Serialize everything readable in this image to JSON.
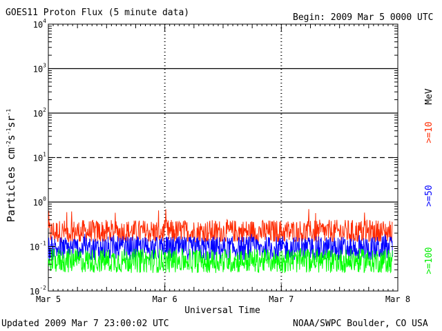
{
  "header": {
    "title": "GOES11 Proton Flux (5 minute data)",
    "begin": "Begin: 2009 Mar 5 0000 UTC"
  },
  "footer": {
    "updated": "Updated 2009 Mar  7 23:00:02 UTC",
    "source": "NOAA/SWPC Boulder, CO USA"
  },
  "chart_data": {
    "type": "line",
    "title": "GOES11 Proton Flux (5 minute data)",
    "xlabel": "Universal Time",
    "ylabel": {
      "base": "Particles cm",
      "e1": "-2",
      "s": "s",
      "e2": "-1",
      "sr": "sr",
      "e3": "-1"
    },
    "y_scale": "log",
    "ylim": [
      0.01,
      10000
    ],
    "y_ticks": [
      {
        "base": "10",
        "exp": "-2",
        "value": 0.01
      },
      {
        "base": "10",
        "exp": "-1",
        "value": 0.1
      },
      {
        "base": "10",
        "exp": "0",
        "value": 1
      },
      {
        "base": "10",
        "exp": "1",
        "value": 10
      },
      {
        "base": "10",
        "exp": "2",
        "value": 100
      },
      {
        "base": "10",
        "exp": "3",
        "value": 1000
      },
      {
        "base": "10",
        "exp": "4",
        "value": 10000
      }
    ],
    "x_ticks": [
      "Mar 5",
      "Mar 6",
      "Mar 7",
      "Mar 8"
    ],
    "xlim_days": [
      0,
      3
    ],
    "unit_label": "MeV",
    "series": [
      {
        "name": ">=10",
        "color": "#ff2a00",
        "baseline": 0.2,
        "min": 0.13,
        "max": 0.7
      },
      {
        "name": ">=50",
        "color": "#0000ff",
        "baseline": 0.085,
        "min": 0.05,
        "max": 0.2
      },
      {
        "name": ">=100",
        "color": "#00ff00",
        "baseline": 0.045,
        "min": 0.025,
        "max": 0.09
      }
    ],
    "reference_lines": [
      {
        "value": 10,
        "style": "dashed"
      },
      {
        "value": 100,
        "style": "solid"
      },
      {
        "value": 1000,
        "style": "solid"
      },
      {
        "value": 1,
        "style": "solid"
      }
    ]
  }
}
